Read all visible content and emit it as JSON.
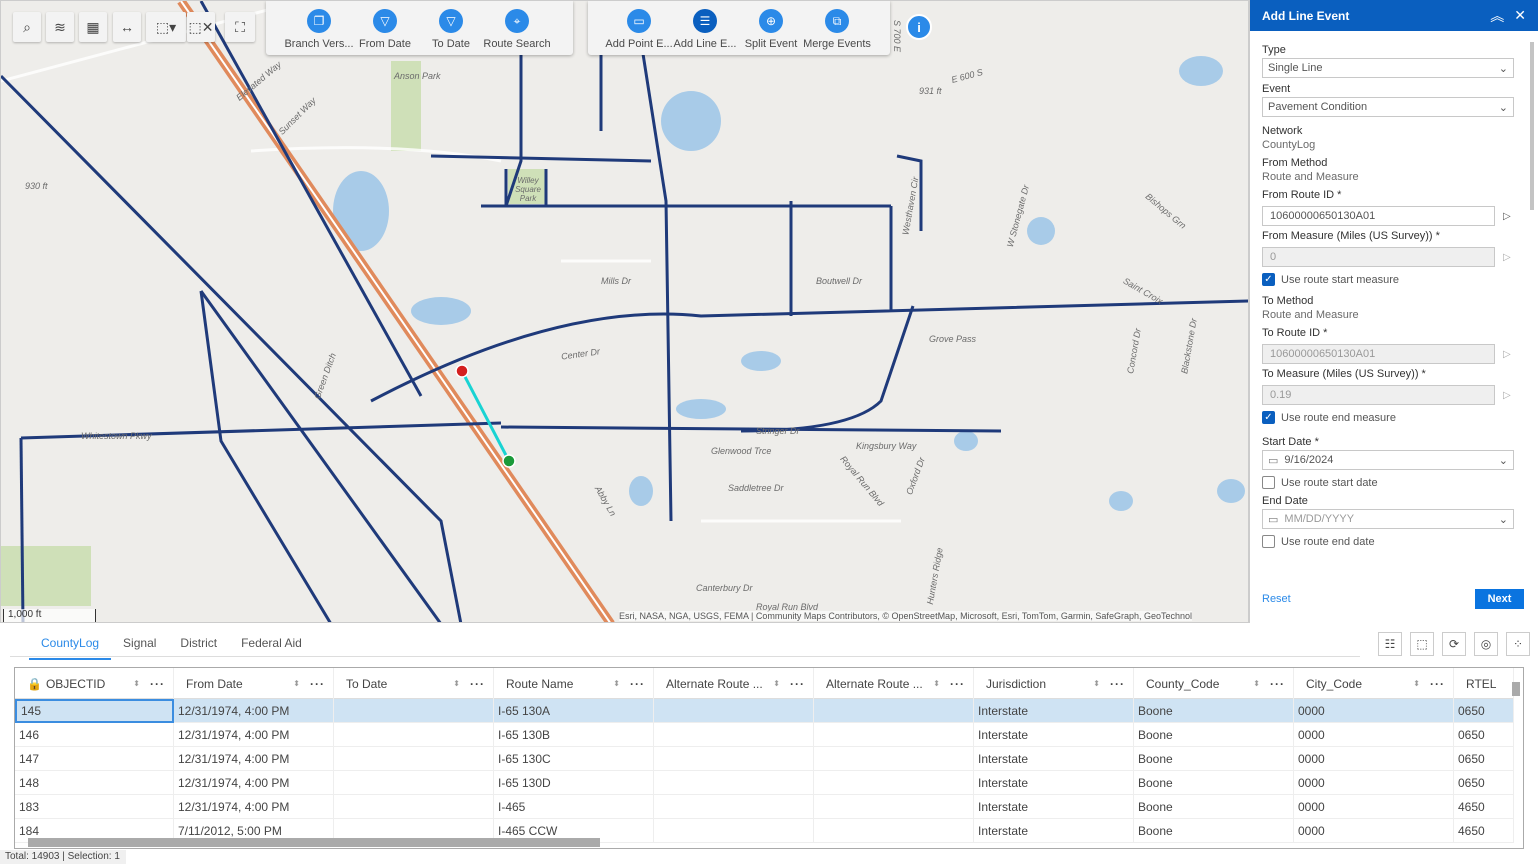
{
  "map": {
    "toolbar_left": [
      {
        "name": "search-icon",
        "glyph": "⌕"
      },
      {
        "name": "layers-icon",
        "glyph": "≋"
      },
      {
        "name": "basemap-gallery-icon",
        "glyph": "▦"
      },
      {
        "name": "measure-icon",
        "glyph": "↔"
      },
      {
        "name": "select-icon",
        "glyph": "⬚▾"
      },
      {
        "name": "clear-selection-icon",
        "glyph": "⬚✕"
      },
      {
        "name": "route-tool-icon",
        "glyph": "⛶"
      }
    ],
    "group1": [
      {
        "label": "Branch Vers...",
        "icon": "copy-icon",
        "glyph": "❐"
      },
      {
        "label": "From Date",
        "icon": "filter-icon",
        "glyph": "▽"
      },
      {
        "label": "To Date",
        "icon": "filter-icon",
        "glyph": "▽"
      },
      {
        "label": "Route Search",
        "icon": "route-search-icon",
        "glyph": "⌖"
      }
    ],
    "group2": [
      {
        "label": "Add Point E...",
        "icon": "add-point-event-icon",
        "glyph": "▭"
      },
      {
        "label": "Add Line E...",
        "icon": "add-line-event-icon",
        "glyph": "☰"
      },
      {
        "label": "Split Event",
        "icon": "split-event-icon",
        "glyph": "⊕"
      },
      {
        "label": "Merge Events",
        "icon": "merge-events-icon",
        "glyph": "⧉"
      }
    ],
    "info_glyph": "i",
    "scale": "1,000 ft",
    "attribution": "Esri, NASA, NGA, USGS, FEMA | Community Maps Contributors, © OpenStreetMap, Microsoft, Esri, TomTom, Garmin, SafeGraph, GeoTechnol",
    "labels": {
      "anson": "Anson Park",
      "willey": "Willey Square Park",
      "center": "Center Dr",
      "mills": "Mills Dr",
      "boutwell": "Boutwell Dr",
      "grove": "Grove Pass",
      "kingsbury": "Kingsbury Way",
      "glenwood": "Glenwood Trce",
      "saddletree": "Saddletree Dr",
      "canterbury": "Canterbury Dr",
      "royalrun": "Royal Run Blvd",
      "royalrun2": "Royal Run Blvd",
      "elevated": "Elevated Way",
      "sunset": "Sunset Way",
      "greenditch": "Green Ditch",
      "whitestown": "Whitestown Pkwy",
      "stringer": "Stringer Dr",
      "e930": "930 ft",
      "e931": "931 ft",
      "westhaven": "Westhaven Cir",
      "bishops": "Bishops Grn",
      "s700": "S 700 E",
      "abby": "Abby Ln",
      "e600": "E 600 S",
      "stonegate": "W Stonegate Dr",
      "concord": "Concord Dr",
      "blackstone": "Blackstone Dr",
      "saintcroix": "Saint Croix",
      "oxford": "Oxford Dr",
      "hunters": "Hunters Ridge"
    },
    "colors": {
      "road": "#1f3a7a",
      "highway": "#e08a5c",
      "segment": "#19d3d3",
      "start": "#d42020",
      "end": "#1a9a3a"
    }
  },
  "panel": {
    "title": "Add Line Event",
    "collapse_glyph": "︽",
    "close_glyph": "✕",
    "type_label": "Type",
    "type_value": "Single Line",
    "event_label": "Event",
    "event_value": "Pavement Condition",
    "network_label": "Network",
    "network_value": "CountyLog",
    "from_method_label": "From Method",
    "from_method_value": "Route and Measure",
    "from_route_label": "From Route ID *",
    "from_route_value": "10600000650130A01",
    "from_measure_label": "From Measure (Miles (US Survey)) *",
    "from_measure_value": "0",
    "use_start_measure": {
      "label": "Use route start measure",
      "checked": true
    },
    "to_method_label": "To Method",
    "to_method_value": "Route and Measure",
    "to_route_label": "To Route ID *",
    "to_route_value": "10600000650130A01",
    "to_measure_label": "To Measure (Miles (US Survey)) *",
    "to_measure_value": "0.19",
    "use_end_measure": {
      "label": "Use route end measure",
      "checked": true
    },
    "start_date_label": "Start Date *",
    "start_date_value": "9/16/2024",
    "use_start_date": {
      "label": "Use route start date",
      "checked": false
    },
    "end_date_label": "End Date",
    "end_date_placeholder": "MM/DD/YYYY",
    "use_end_date": {
      "label": "Use route end date",
      "checked": false
    },
    "reset": "Reset",
    "next": "Next",
    "check_glyph": "✓",
    "chev": "⌄",
    "pick_glyph": "▷",
    "cal_glyph": "▭"
  },
  "table": {
    "tabs": [
      "CountyLog",
      "Signal",
      "District",
      "Federal Aid"
    ],
    "active_tab": 0,
    "tools": [
      {
        "name": "show-selected-icon",
        "glyph": "☷"
      },
      {
        "name": "clear-selection-icon",
        "glyph": "⬚"
      },
      {
        "name": "refresh-icon",
        "glyph": "⟳"
      },
      {
        "name": "toggle-columns-icon",
        "glyph": "◎"
      },
      {
        "name": "options-icon",
        "glyph": "⁘"
      }
    ],
    "columns": [
      "OBJECTID",
      "From Date",
      "To Date",
      "Route Name",
      "Alternate Route ...",
      "Alternate Route ...",
      "Jurisdiction",
      "County_Code",
      "City_Code",
      "RTEL"
    ],
    "rows": [
      [
        "145",
        "12/31/1974, 4:00 PM",
        "",
        "I-65 130A",
        "",
        "",
        "Interstate",
        "Boone",
        "0000",
        "0650"
      ],
      [
        "146",
        "12/31/1974, 4:00 PM",
        "",
        "I-65 130B",
        "",
        "",
        "Interstate",
        "Boone",
        "0000",
        "0650"
      ],
      [
        "147",
        "12/31/1974, 4:00 PM",
        "",
        "I-65 130C",
        "",
        "",
        "Interstate",
        "Boone",
        "0000",
        "0650"
      ],
      [
        "148",
        "12/31/1974, 4:00 PM",
        "",
        "I-65 130D",
        "",
        "",
        "Interstate",
        "Boone",
        "0000",
        "0650"
      ],
      [
        "183",
        "12/31/1974, 4:00 PM",
        "",
        "I-465",
        "",
        "",
        "Interstate",
        "Boone",
        "0000",
        "4650"
      ],
      [
        "184",
        "7/11/2012, 5:00 PM",
        "",
        "I-465 CCW",
        "",
        "",
        "Interstate",
        "Boone",
        "0000",
        "4650"
      ]
    ],
    "selected_row": 0,
    "status": "Total: 14903 | Selection: 1"
  }
}
